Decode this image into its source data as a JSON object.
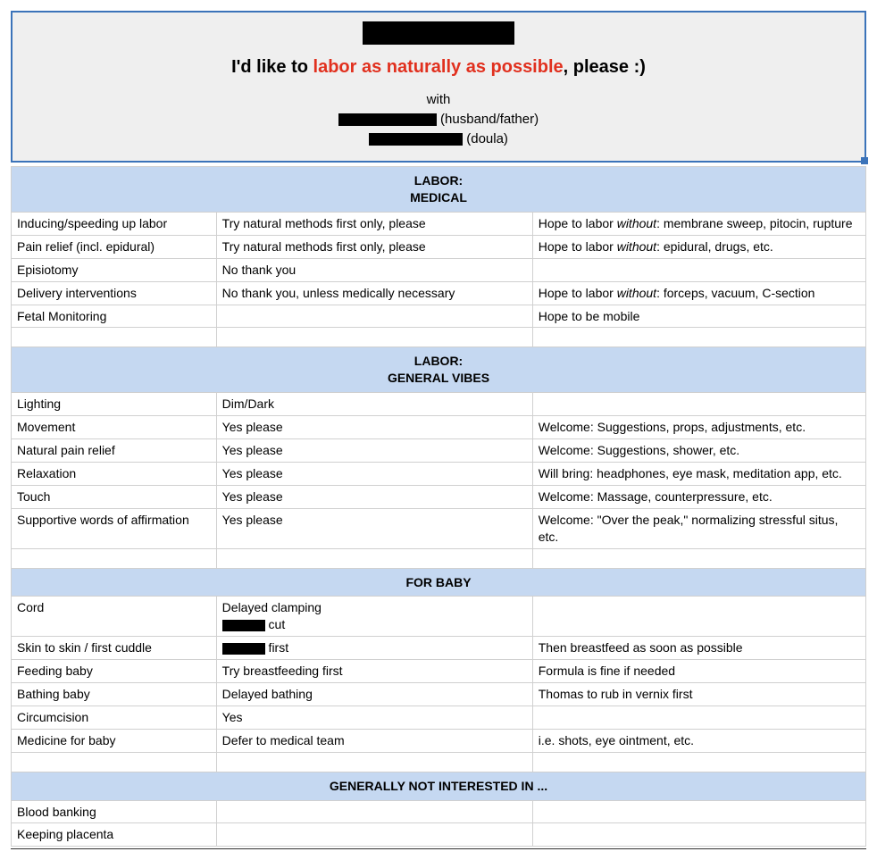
{
  "colors": {
    "header_border": "#3b73b9",
    "header_bg": "#efefef",
    "section_bg": "#c5d8f1",
    "cell_border": "#d0d0d0",
    "emphasis": "#e1301e",
    "text": "#000000",
    "redaction": "#000000"
  },
  "header": {
    "tagline_prefix": "I'd like to ",
    "tagline_emph": "labor as naturally as possible",
    "tagline_suffix": ", please :)",
    "with_label": "with",
    "support1_role": " (husband/father)",
    "support2_role": " (doula)"
  },
  "sections": {
    "labor_medical": {
      "title": "LABOR:\nMEDICAL",
      "rows": [
        {
          "c1": "Inducing/speeding up labor",
          "c2": "Try natural methods first only, please",
          "c3p": "Hope to labor ",
          "c3i": "without",
          "c3s": ": membrane sweep, pitocin, rupture"
        },
        {
          "c1": "Pain relief (incl. epidural)",
          "c2": "Try natural methods first only, please",
          "c3p": "Hope to labor ",
          "c3i": "without",
          "c3s": ": epidural, drugs, etc."
        },
        {
          "c1": "Episiotomy",
          "c2": "No thank you",
          "c3": ""
        },
        {
          "c1": "Delivery interventions",
          "c2": "No thank you, unless medically necessary",
          "c3p": "Hope to labor ",
          "c3i": "without",
          "c3s": ": forceps, vacuum, C-section"
        },
        {
          "c1": "Fetal Monitoring",
          "c2": "",
          "c3": "Hope to be mobile"
        }
      ]
    },
    "labor_vibes": {
      "title": "LABOR:\nGENERAL VIBES",
      "rows": [
        {
          "c1": "Lighting",
          "c2": "Dim/Dark",
          "c3": ""
        },
        {
          "c1": "Movement",
          "c2": "Yes please",
          "c3": "Welcome: Suggestions, props, adjustments, etc."
        },
        {
          "c1": "Natural pain relief",
          "c2": "Yes please",
          "c3": "Welcome: Suggestions, shower, etc."
        },
        {
          "c1": "Relaxation",
          "c2": "Yes please",
          "c3": "Will bring: headphones, eye mask, meditation app, etc."
        },
        {
          "c1": "Touch",
          "c2": "Yes please",
          "c3": "Welcome: Massage, counterpressure, etc."
        },
        {
          "c1": "Supportive words of affirmation",
          "c2": "Yes please",
          "c3": "Welcome: \"Over the peak,\" normalizing stressful situs, etc."
        }
      ]
    },
    "for_baby": {
      "title": "FOR BABY",
      "cord": {
        "c1": "Cord",
        "c2_line1": "Delayed clamping",
        "c2_suffix": " cut",
        "c3": ""
      },
      "rows": [
        {
          "c1": "Skin to skin / first cuddle",
          "c2_suffix": " first",
          "c3": "Then breastfeed as soon as possible",
          "redact": true
        },
        {
          "c1": "Feeding baby",
          "c2": "Try breastfeeding first",
          "c3": "Formula is fine if needed"
        },
        {
          "c1": "Bathing baby",
          "c2": "Delayed bathing",
          "c3": "Thomas to rub in vernix first"
        },
        {
          "c1": "Circumcision",
          "c2": "Yes",
          "c3": ""
        },
        {
          "c1": "Medicine for baby",
          "c2": "Defer to medical team",
          "c3": "i.e. shots, eye ointment, etc."
        }
      ]
    },
    "not_interested": {
      "title": "GENERALLY NOT INTERESTED IN ...",
      "rows": [
        {
          "c1": "Blood banking",
          "c2": "",
          "c3": ""
        },
        {
          "c1": "Keeping placenta",
          "c2": "",
          "c3": ""
        }
      ]
    }
  }
}
